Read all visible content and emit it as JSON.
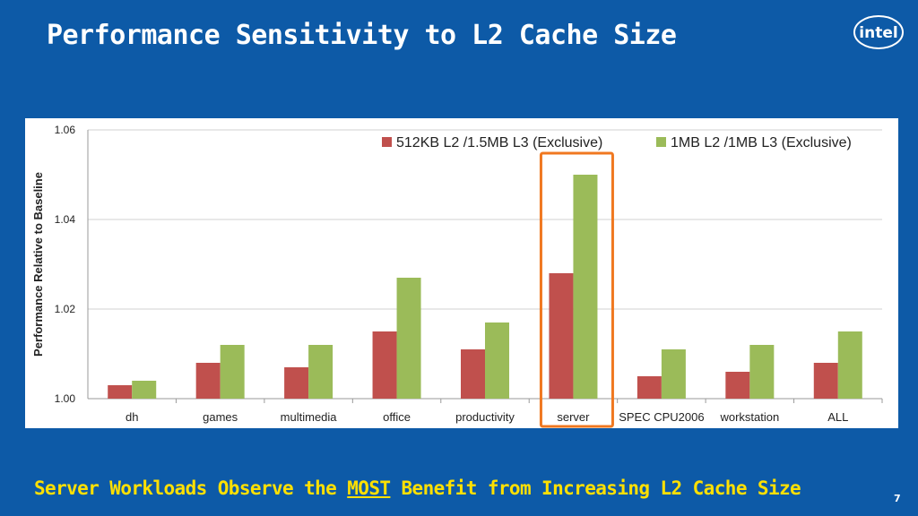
{
  "slide": {
    "title": "Performance Sensitivity to L2 Cache Size",
    "logo_text": "intel",
    "footer_pre": "Server Workloads Observe the ",
    "footer_highlight": "MOST",
    "footer_post": " Benefit from Increasing L2 Cache Size",
    "page_number": "7"
  },
  "colors": {
    "background": "#0d5aa7",
    "series1": "#c0504d",
    "series2": "#9bbb59",
    "highlight_box": "#f07820",
    "footer_text": "#ffe000"
  },
  "chart_data": {
    "type": "bar",
    "title": "",
    "xlabel": "",
    "ylabel": "Performance Relative to Baseline",
    "ylim": [
      1.0,
      1.06
    ],
    "yticks": [
      "1.00",
      "1.02",
      "1.04",
      "1.06"
    ],
    "ytick_values": [
      1.0,
      1.02,
      1.04,
      1.06
    ],
    "grid": true,
    "legend_position": "top-right",
    "categories": [
      "dh",
      "games",
      "multimedia",
      "office",
      "productivity",
      "server",
      "SPEC CPU2006",
      "workstation",
      "ALL"
    ],
    "series": [
      {
        "name": "512KB L2 /1.5MB L3 (Exclusive)",
        "values": [
          1.003,
          1.008,
          1.007,
          1.015,
          1.011,
          1.028,
          1.005,
          1.006,
          1.008
        ]
      },
      {
        "name": "1MB L2 /1MB L3 (Exclusive)",
        "values": [
          1.004,
          1.012,
          1.012,
          1.027,
          1.017,
          1.05,
          1.011,
          1.012,
          1.015
        ]
      }
    ],
    "highlighted_category": "server"
  }
}
